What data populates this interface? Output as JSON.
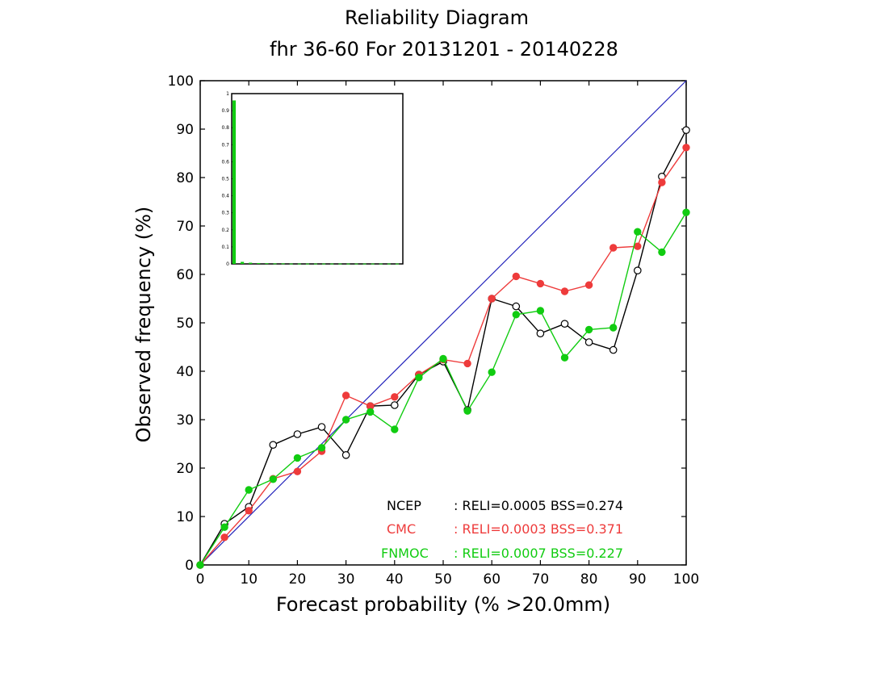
{
  "chart_data": {
    "type": "line",
    "title": "Reliability Diagram",
    "subtitle": "fhr 36-60 For 20131201 - 20140228",
    "xlabel": "Forecast probability (% >20.0mm)",
    "ylabel": "Observed frequency (%)",
    "xlim": [
      0,
      100
    ],
    "ylim": [
      0,
      100
    ],
    "xticks": [
      0,
      10,
      20,
      30,
      40,
      50,
      60,
      70,
      80,
      90,
      100
    ],
    "yticks": [
      0,
      10,
      20,
      30,
      40,
      50,
      60,
      70,
      80,
      90,
      100
    ],
    "grid": false,
    "diagonal_color": "#2222bb",
    "series": [
      {
        "name": "NCEP",
        "color": "#000000",
        "marker": "open-circle",
        "x": [
          0,
          5,
          10,
          15,
          20,
          25,
          30,
          35,
          40,
          45,
          50,
          55,
          60,
          65,
          70,
          75,
          80,
          85,
          90,
          95,
          100
        ],
        "y": [
          0,
          8.5,
          12,
          24.8,
          27,
          28.5,
          22.7,
          32.8,
          33,
          39.3,
          42,
          32,
          55,
          53.4,
          47.8,
          49.8,
          46,
          44.4,
          60.8,
          80.2,
          89.8
        ]
      },
      {
        "name": "CMC",
        "color": "#ee3b3b",
        "marker": "filled-circle",
        "x": [
          0,
          5,
          10,
          15,
          20,
          25,
          30,
          35,
          40,
          45,
          50,
          55,
          60,
          65,
          70,
          75,
          80,
          85,
          90,
          95,
          100
        ],
        "y": [
          0,
          5.7,
          11.2,
          17.8,
          19.3,
          23.5,
          35,
          32.8,
          34.7,
          39.3,
          42.4,
          41.6,
          55,
          59.6,
          58.1,
          56.5,
          57.8,
          65.5,
          65.8,
          79,
          86.2
        ]
      },
      {
        "name": "FNMOC",
        "color": "#11cc11",
        "marker": "filled-circle",
        "x": [
          0,
          5,
          10,
          15,
          20,
          25,
          30,
          35,
          40,
          45,
          50,
          55,
          60,
          65,
          70,
          75,
          80,
          85,
          90,
          95,
          100
        ],
        "y": [
          0,
          7.8,
          15.5,
          17.7,
          22.1,
          24.2,
          30,
          31.6,
          28,
          38.7,
          42.6,
          31.8,
          39.8,
          51.7,
          52.5,
          42.8,
          48.6,
          49,
          68.8,
          64.6,
          72.8
        ]
      }
    ],
    "legend": {
      "placement": "bottom-right",
      "entries": [
        {
          "name": "NCEP",
          "text": ": RELI=0.0005  BSS=0.274",
          "color": "#000000"
        },
        {
          "name": "CMC",
          "text": ": RELI=0.0003  BSS=0.371",
          "color": "#ee3b3b"
        },
        {
          "name": "FNMOC",
          "text": ": RELI=0.0007  BSS=0.227",
          "color": "#11cc11"
        }
      ]
    },
    "inset": {
      "type": "bar",
      "placement": "top-left",
      "ylim": [
        0,
        1
      ],
      "yticks": [
        "0",
        "0.1",
        "0.2",
        "0.3",
        "0.4",
        "0.5",
        "0.6",
        "0.7",
        "0.8",
        "0.9",
        "1"
      ],
      "x": [
        0,
        5,
        10,
        15,
        20,
        25,
        30,
        35,
        40,
        45,
        50,
        55,
        60,
        65,
        70,
        75,
        80,
        85,
        90,
        95,
        100
      ],
      "values": [
        0.96,
        0.012,
        0.007,
        0.005,
        0.004,
        0.003,
        0.003,
        0.002,
        0.002,
        0.002,
        0.002,
        0.002,
        0.002,
        0.002,
        0.002,
        0.002,
        0.002,
        0.002,
        0.002,
        0.002,
        0.002
      ],
      "bar_color": "#11cc11"
    }
  }
}
